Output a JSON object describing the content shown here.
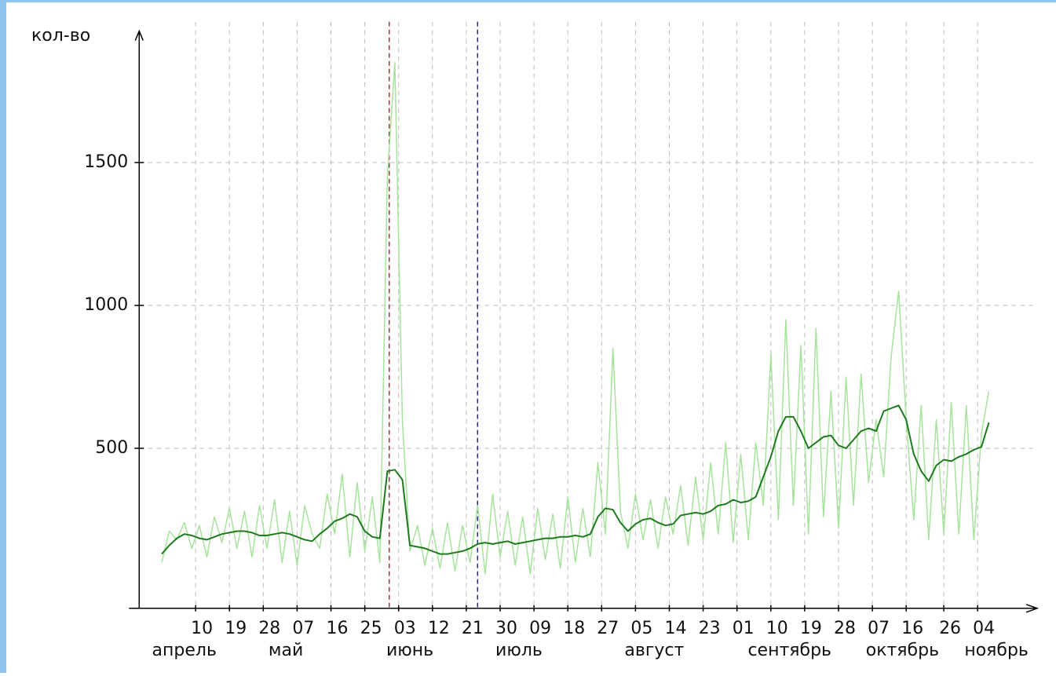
{
  "chart_data": {
    "type": "line",
    "y_axis_label": "кол-во",
    "x": [
      0,
      2,
      4,
      6,
      8,
      10,
      12,
      14,
      16,
      18,
      20,
      22,
      24,
      26,
      28,
      30,
      32,
      34,
      36,
      38,
      40,
      42,
      44,
      46,
      48,
      50,
      52,
      54,
      56,
      58,
      60,
      62,
      64,
      66,
      68,
      70,
      72,
      74,
      76,
      78,
      80,
      82,
      84,
      86,
      88,
      90,
      92,
      94,
      96,
      98,
      100,
      102,
      104,
      106,
      108,
      110,
      112,
      114,
      116,
      118,
      120,
      122,
      124,
      126,
      128,
      130,
      132,
      134,
      136,
      138,
      140,
      142,
      144,
      146,
      148,
      150,
      152,
      154,
      156,
      158,
      160,
      162,
      164,
      166,
      168,
      170,
      172,
      174,
      176,
      178,
      180,
      182,
      184,
      186,
      188,
      190,
      192,
      194,
      196,
      198,
      200,
      202,
      204,
      206,
      208,
      210,
      212,
      214,
      216,
      218,
      220
    ],
    "series": [
      {
        "color": "#a6e49c",
        "values": [
          100,
          210,
          180,
          240,
          150,
          230,
          120,
          260,
          170,
          290,
          150,
          280,
          120,
          300,
          150,
          320,
          100,
          280,
          90,
          300,
          200,
          150,
          340,
          200,
          410,
          120,
          380,
          140,
          330,
          100,
          1450,
          1850,
          600,
          140,
          230,
          90,
          220,
          80,
          240,
          70,
          230,
          100,
          300,
          60,
          340,
          120,
          280,
          90,
          260,
          60,
          290,
          110,
          270,
          80,
          330,
          100,
          290,
          120,
          450,
          200,
          850,
          280,
          150,
          340,
          180,
          320,
          150,
          330,
          200,
          370,
          160,
          400,
          180,
          450,
          200,
          520,
          170,
          480,
          180,
          520,
          300,
          830,
          250,
          950,
          300,
          860,
          200,
          920,
          260,
          700,
          220,
          750,
          300,
          760,
          380,
          600,
          400,
          820,
          1050,
          600,
          250,
          650,
          180,
          600,
          200,
          660,
          200,
          650,
          180,
          550,
          700
        ]
      },
      {
        "color": "#1f7a1f",
        "values": [
          130,
          160,
          185,
          200,
          195,
          185,
          180,
          190,
          200,
          205,
          210,
          210,
          205,
          195,
          195,
          200,
          205,
          200,
          190,
          180,
          175,
          200,
          220,
          245,
          255,
          270,
          260,
          210,
          190,
          185,
          420,
          425,
          390,
          160,
          155,
          150,
          140,
          130,
          130,
          135,
          140,
          150,
          165,
          170,
          165,
          170,
          175,
          165,
          170,
          175,
          180,
          185,
          185,
          190,
          190,
          195,
          190,
          200,
          260,
          290,
          285,
          240,
          210,
          235,
          250,
          255,
          240,
          230,
          235,
          265,
          270,
          275,
          270,
          280,
          300,
          305,
          320,
          310,
          315,
          330,
          400,
          470,
          560,
          610,
          610,
          560,
          500,
          520,
          540,
          545,
          510,
          500,
          530,
          560,
          570,
          560,
          630,
          640,
          650,
          600,
          480,
          420,
          385,
          440,
          460,
          455,
          470,
          480,
          495,
          505,
          590
        ]
      }
    ],
    "markers": [
      {
        "x": 60.5,
        "color": "#b03030"
      },
      {
        "x": 84,
        "color": "#2a2a80"
      }
    ],
    "xlim": [
      -6,
      232
    ],
    "xticks": [
      {
        "value": 9,
        "label": "10"
      },
      {
        "value": 18,
        "label": "19"
      },
      {
        "value": 27,
        "label": "28"
      },
      {
        "value": 36,
        "label": "07"
      },
      {
        "value": 45,
        "label": "16"
      },
      {
        "value": 54,
        "label": "25"
      },
      {
        "value": 63,
        "label": "03"
      },
      {
        "value": 72,
        "label": "12"
      },
      {
        "value": 81,
        "label": "21"
      },
      {
        "value": 90,
        "label": "30"
      },
      {
        "value": 99,
        "label": "09"
      },
      {
        "value": 108,
        "label": "18"
      },
      {
        "value": 117,
        "label": "27"
      },
      {
        "value": 126,
        "label": "05"
      },
      {
        "value": 135,
        "label": "14"
      },
      {
        "value": 144,
        "label": "23"
      },
      {
        "value": 153,
        "label": "01"
      },
      {
        "value": 162,
        "label": "10"
      },
      {
        "value": 171,
        "label": "19"
      },
      {
        "value": 180,
        "label": "28"
      },
      {
        "value": 189,
        "label": "07"
      },
      {
        "value": 198,
        "label": "16"
      },
      {
        "value": 208,
        "label": "26"
      },
      {
        "value": 217,
        "label": "04"
      }
    ],
    "month_labels": [
      {
        "value": 6,
        "label": "апрель"
      },
      {
        "value": 33,
        "label": "май"
      },
      {
        "value": 66,
        "label": "июнь"
      },
      {
        "value": 95,
        "label": "июль"
      },
      {
        "value": 131,
        "label": "август"
      },
      {
        "value": 167,
        "label": "сентябрь"
      },
      {
        "value": 197,
        "label": "октябрь"
      },
      {
        "value": 222,
        "label": "ноябрь"
      }
    ],
    "ylim": [
      -60,
      1960
    ],
    "yticks": [
      500,
      1000,
      1500
    ],
    "grid": true
  }
}
